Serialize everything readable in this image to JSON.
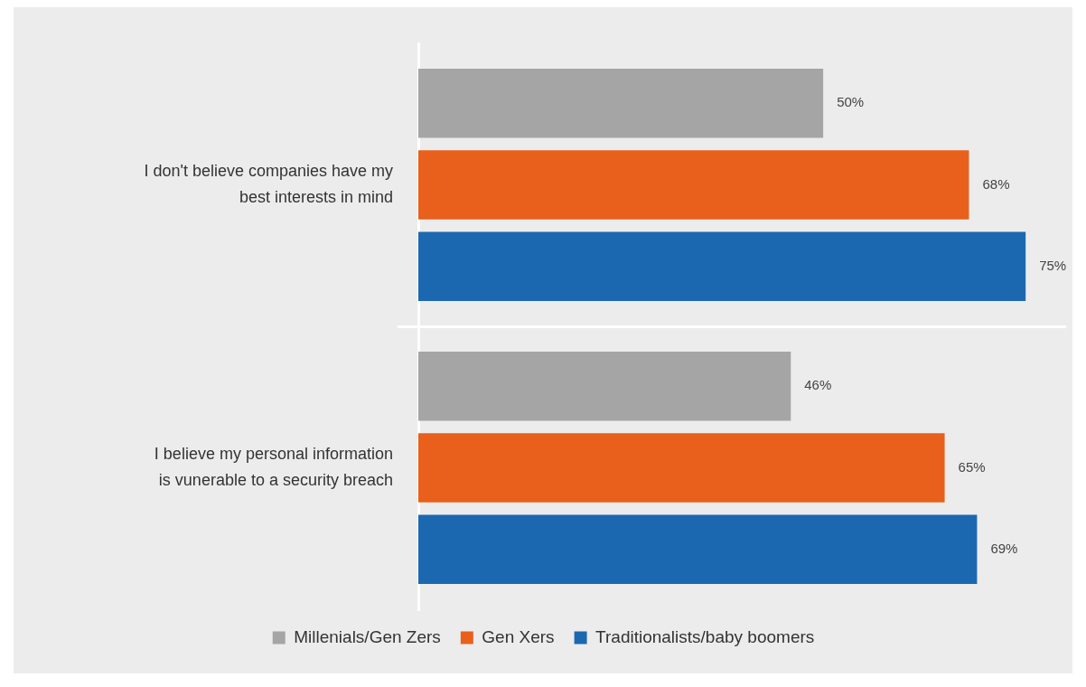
{
  "chart_data": {
    "type": "bar",
    "orientation": "horizontal",
    "categories": [
      "I don't believe companies have my best interests in mind",
      "I believe my personal information is vunerable to a security breach"
    ],
    "series": [
      {
        "name": "Millenials/Gen Zers",
        "color": "#a5a5a5",
        "values": [
          50,
          46
        ],
        "value_labels": [
          "50%",
          "46%"
        ]
      },
      {
        "name": "Gen Xers",
        "color": "#e8601c",
        "values": [
          68,
          65
        ],
        "value_labels": [
          "68%",
          "65%"
        ]
      },
      {
        "name": "Traditionalists/baby boomers",
        "color": "#1c68b0",
        "values": [
          75,
          69
        ],
        "value_labels": [
          "75%",
          "69%"
        ]
      }
    ],
    "legend": "bottom",
    "grid": "y"
  }
}
